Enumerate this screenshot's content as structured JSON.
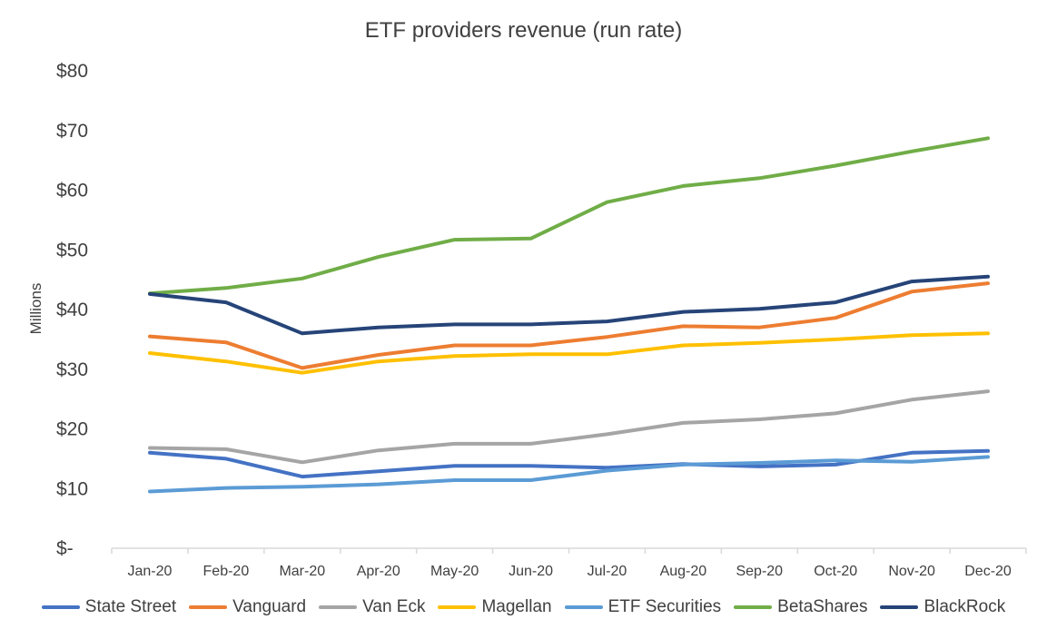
{
  "chart_data": {
    "type": "line",
    "title": "ETF providers revenue (run rate)",
    "xlabel": "",
    "ylabel": "Millions",
    "ylim": [
      0,
      80
    ],
    "yticks": [
      0,
      10,
      20,
      30,
      40,
      50,
      60,
      70,
      80
    ],
    "ytick_labels": [
      "$-",
      "$10",
      "$20",
      "$30",
      "$40",
      "$50",
      "$60",
      "$70",
      "$80"
    ],
    "categories": [
      "Jan-20",
      "Feb-20",
      "Mar-20",
      "Apr-20",
      "May-20",
      "Jun-20",
      "Jul-20",
      "Aug-20",
      "Sep-20",
      "Oct-20",
      "Nov-20",
      "Dec-20"
    ],
    "grid": false,
    "legend_position": "bottom",
    "series": [
      {
        "name": "State Street",
        "color": "#4472C4",
        "values": [
          16.0,
          15.0,
          12.0,
          12.9,
          13.8,
          13.8,
          13.5,
          14.1,
          13.7,
          14.0,
          16.0,
          16.3
        ]
      },
      {
        "name": "Vanguard",
        "color": "#ED7D31",
        "values": [
          35.5,
          34.5,
          30.2,
          32.4,
          34.0,
          34.0,
          35.4,
          37.2,
          37.0,
          38.6,
          43.0,
          44.4
        ]
      },
      {
        "name": "Van Eck",
        "color": "#A5A5A5",
        "values": [
          16.8,
          16.6,
          14.4,
          16.4,
          17.5,
          17.5,
          19.1,
          21.0,
          21.6,
          22.6,
          24.9,
          26.3
        ]
      },
      {
        "name": "Magellan",
        "color": "#FFC000",
        "values": [
          32.7,
          31.3,
          29.4,
          31.3,
          32.2,
          32.5,
          32.5,
          34.0,
          34.4,
          35.0,
          35.7,
          36.0
        ]
      },
      {
        "name": "ETF Securities",
        "color": "#5B9BD5",
        "values": [
          9.5,
          10.1,
          10.3,
          10.7,
          11.4,
          11.4,
          13.0,
          14.0,
          14.3,
          14.7,
          14.5,
          15.3
        ]
      },
      {
        "name": "BetaShares",
        "color": "#70AD47",
        "values": [
          42.7,
          43.6,
          45.2,
          48.8,
          51.7,
          51.9,
          58.0,
          60.7,
          62.0,
          64.1,
          66.5,
          68.7
        ]
      },
      {
        "name": "BlackRock",
        "color": "#264478",
        "values": [
          42.6,
          41.2,
          36.0,
          37.0,
          37.5,
          37.5,
          38.0,
          39.6,
          40.1,
          41.2,
          44.7,
          45.5
        ]
      }
    ]
  }
}
